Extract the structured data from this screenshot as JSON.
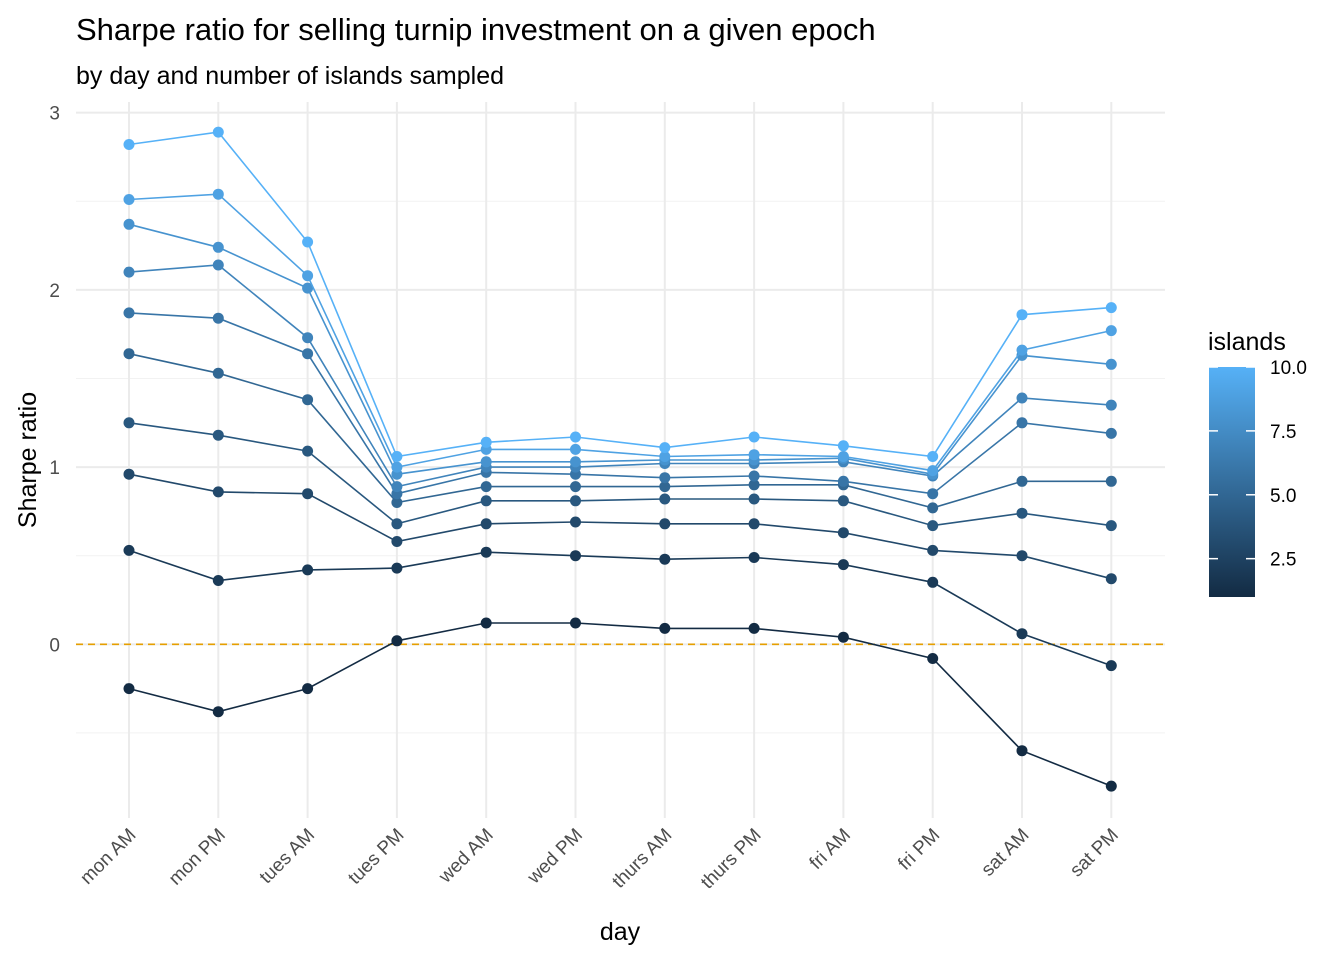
{
  "chart_data": {
    "type": "line",
    "title": "Sharpe ratio for selling turnip investment on a given epoch",
    "subtitle": "by day and number of islands sampled",
    "xlabel": "day",
    "ylabel": "Sharpe ratio",
    "categories": [
      "mon AM",
      "mon PM",
      "tues AM",
      "tues PM",
      "wed AM",
      "wed PM",
      "thurs AM",
      "thurs PM",
      "fri AM",
      "fri PM",
      "sat AM",
      "sat PM"
    ],
    "ylim": [
      -0.98,
      3.06
    ],
    "y_ticks": [
      0,
      1,
      2,
      3
    ],
    "y_tick_labels": [
      "0",
      "1",
      "2",
      "3"
    ],
    "grid": true,
    "reference_line": {
      "y": 0,
      "color": "#E69F00",
      "style": "dashed"
    },
    "color_scale": {
      "name": "islands",
      "low_color": "#132B43",
      "high_color": "#56B1F7",
      "min": 1,
      "max": 10,
      "ticks": [
        2.5,
        5.0,
        7.5,
        10.0
      ],
      "tick_labels": [
        "2.5",
        "5.0",
        "7.5",
        "10.0"
      ],
      "position": "right"
    },
    "series": [
      {
        "islands": 1,
        "values": [
          -0.25,
          -0.38,
          -0.25,
          0.02,
          0.12,
          0.12,
          0.09,
          0.09,
          0.04,
          -0.08,
          -0.6,
          -0.8
        ]
      },
      {
        "islands": 2,
        "values": [
          0.53,
          0.36,
          0.42,
          0.43,
          0.52,
          0.5,
          0.48,
          0.49,
          0.45,
          0.35,
          0.06,
          -0.12
        ]
      },
      {
        "islands": 3,
        "values": [
          0.96,
          0.86,
          0.85,
          0.58,
          0.68,
          0.69,
          0.68,
          0.68,
          0.63,
          0.53,
          0.5,
          0.37
        ]
      },
      {
        "islands": 4,
        "values": [
          1.25,
          1.18,
          1.09,
          0.68,
          0.81,
          0.81,
          0.82,
          0.82,
          0.81,
          0.67,
          0.74,
          0.67
        ]
      },
      {
        "islands": 5,
        "values": [
          1.64,
          1.53,
          1.38,
          0.8,
          0.89,
          0.89,
          0.89,
          0.9,
          0.9,
          0.77,
          0.92,
          0.92
        ]
      },
      {
        "islands": 6,
        "values": [
          1.87,
          1.84,
          1.64,
          0.85,
          0.97,
          0.96,
          0.94,
          0.95,
          0.92,
          0.85,
          1.25,
          1.19
        ]
      },
      {
        "islands": 7,
        "values": [
          2.1,
          2.14,
          1.73,
          0.89,
          1.0,
          1.0,
          1.02,
          1.02,
          1.03,
          0.95,
          1.39,
          1.35
        ]
      },
      {
        "islands": 8,
        "values": [
          2.37,
          2.24,
          2.01,
          0.96,
          1.03,
          1.03,
          1.04,
          1.04,
          1.05,
          0.96,
          1.63,
          1.58
        ]
      },
      {
        "islands": 9,
        "values": [
          2.51,
          2.54,
          2.08,
          1.0,
          1.1,
          1.1,
          1.06,
          1.07,
          1.06,
          0.98,
          1.66,
          1.77
        ]
      },
      {
        "islands": 10,
        "values": [
          2.82,
          2.89,
          2.27,
          1.06,
          1.14,
          1.17,
          1.11,
          1.17,
          1.12,
          1.06,
          1.86,
          1.9
        ]
      }
    ]
  }
}
